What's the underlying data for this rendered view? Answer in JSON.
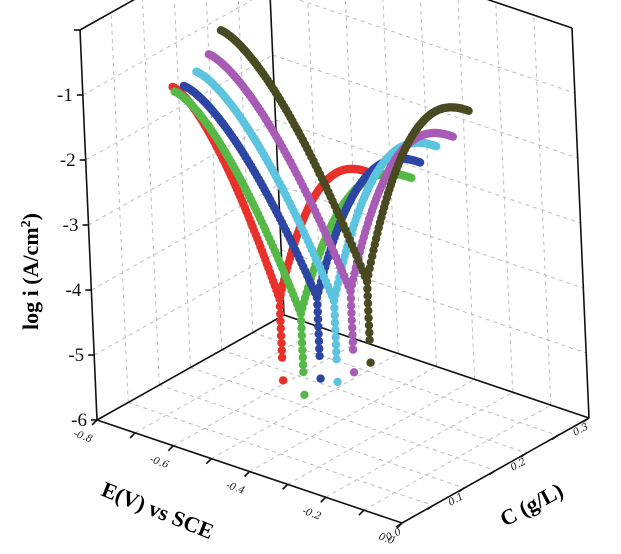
{
  "chart_data": {
    "type": "scatter",
    "projection": "3d",
    "title": "",
    "xlabel": "E(V) vs SCE",
    "ylabel": "C (g/L)",
    "zlabel_main": "log i  (A/cm",
    "zlabel_sup": "2",
    "zlabel_close": ")",
    "xlim": [
      -0.8,
      0.0
    ],
    "ylim": [
      0.0,
      0.3
    ],
    "zlim": [
      -6,
      0
    ],
    "x_ticks": [
      "-0.8",
      "-0.6",
      "-0.4",
      "-0.2",
      "0.0"
    ],
    "y_ticks": [
      "0.0",
      "0.1",
      "0.2",
      "0.3"
    ],
    "z_ticks": [
      "-1",
      "-2",
      "-3",
      "-4",
      "-5",
      "-6"
    ],
    "grid": true,
    "legend": "none",
    "series": [
      {
        "color": "#e8312a",
        "C": 0.0,
        "Ecorr": -0.3,
        "logi_min": -4.05,
        "cathodic_start_E": -0.56,
        "cathodic_start_logi": -0.4,
        "anodic_end_E": -0.05,
        "anodic_end_logi": -0.7
      },
      {
        "color": "#56b947",
        "C": 0.05,
        "Ecorr": -0.33,
        "logi_min": -4.6,
        "cathodic_start_E": -0.64,
        "cathodic_start_logi": -0.9,
        "anodic_end_E": -0.02,
        "anodic_end_logi": -1.0
      },
      {
        "color": "#2e46a3",
        "C": 0.1,
        "Ecorr": -0.37,
        "logi_min": -4.7,
        "cathodic_start_E": -0.7,
        "cathodic_start_logi": -1.2,
        "anodic_end_E": -0.08,
        "anodic_end_logi": -1.15
      },
      {
        "color": "#5cc4df",
        "C": 0.15,
        "Ecorr": -0.41,
        "logi_min": -5.1,
        "cathodic_start_E": -0.75,
        "cathodic_start_logi": -1.35,
        "anodic_end_E": -0.12,
        "anodic_end_logi": -1.25
      },
      {
        "color": "#a85bb5",
        "C": 0.2,
        "Ecorr": -0.45,
        "logi_min": -5.3,
        "cathodic_start_E": -0.8,
        "cathodic_start_logi": -1.45,
        "anodic_end_E": -0.16,
        "anodic_end_logi": -1.45
      },
      {
        "color": "#4a4a22",
        "C": 0.25,
        "Ecorr": -0.49,
        "logi_min": -5.5,
        "cathodic_start_E": -0.85,
        "cathodic_start_logi": -1.45,
        "anodic_end_E": -0.2,
        "anodic_end_logi": -1.4
      }
    ]
  }
}
